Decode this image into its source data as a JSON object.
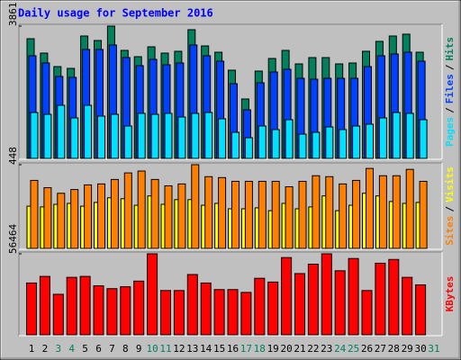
{
  "title": "Daily usage for September 2016",
  "legend_separator": "/",
  "categories": [
    "1",
    "2",
    "3",
    "4",
    "5",
    "6",
    "7",
    "8",
    "9",
    "10",
    "11",
    "12",
    "13",
    "14",
    "15",
    "16",
    "17",
    "18",
    "19",
    "20",
    "21",
    "22",
    "23",
    "24",
    "25",
    "26",
    "27",
    "28",
    "29",
    "30",
    "31"
  ],
  "category_colors": [
    "#000000",
    "#000000",
    "#00805c",
    "#00805c",
    "#000000",
    "#000000",
    "#000000",
    "#000000",
    "#000000",
    "#00805c",
    "#00805c",
    "#000000",
    "#000000",
    "#000000",
    "#000000",
    "#000000",
    "#00805c",
    "#00805c",
    "#000000",
    "#000000",
    "#000000",
    "#000000",
    "#000000",
    "#00805c",
    "#00805c",
    "#000000",
    "#000000",
    "#000000",
    "#000000",
    "#000000",
    "#00805c"
  ],
  "chart_data": [
    {
      "type": "bar",
      "ylim": [
        0,
        3861
      ],
      "yticks": [
        3861
      ],
      "series": [
        {
          "name": "Hits",
          "color": "#00805c",
          "values": [
            3493,
            3073,
            2679,
            2627,
            3572,
            3441,
            3861,
            3152,
            2968,
            3257,
            3073,
            3126,
            3756,
            3283,
            3099,
            2574,
            1734,
            2548,
            2916,
            3152,
            2758,
            2942,
            2942,
            2758,
            2784,
            3126,
            3415,
            3572,
            3625,
            3099,
            null
          ]
        },
        {
          "name": "Files",
          "color": "#0040ff",
          "values": [
            2995,
            2785,
            2391,
            2364,
            3179,
            3179,
            3310,
            2942,
            2706,
            2890,
            2732,
            2785,
            3310,
            2995,
            2837,
            2180,
            1419,
            2207,
            2522,
            2601,
            2338,
            2312,
            2338,
            2338,
            2338,
            2680,
            2995,
            3047,
            3100,
            2837,
            null
          ]
        },
        {
          "name": "Pages",
          "color": "#00e0ff",
          "values": [
            1340,
            1287,
            1550,
            1182,
            1550,
            1235,
            1287,
            946,
            1314,
            1287,
            1314,
            1208,
            1314,
            1340,
            1156,
            762,
            604,
            946,
            841,
            1130,
            709,
            762,
            919,
            841,
            946,
            998,
            1182,
            1340,
            1314,
            1130,
            null
          ]
        }
      ]
    },
    {
      "type": "bar",
      "ylim": [
        0,
        448
      ],
      "yticks": [
        448
      ],
      "series": [
        {
          "name": "Visits",
          "color": "#ffff00",
          "values": [
            226,
            222,
            236,
            241,
            226,
            246,
            271,
            266,
            231,
            281,
            236,
            261,
            261,
            231,
            241,
            212,
            212,
            217,
            202,
            241,
            212,
            222,
            281,
            202,
            231,
            295,
            281,
            251,
            241,
            246,
            null
          ]
        },
        {
          "name": "Sites",
          "color": "#ff8000",
          "values": [
            364,
            325,
            295,
            315,
            340,
            345,
            369,
            404,
            414,
            369,
            335,
            345,
            448,
            384,
            379,
            359,
            359,
            359,
            359,
            330,
            359,
            389,
            384,
            345,
            364,
            428,
            389,
            389,
            423,
            359,
            null
          ]
        }
      ]
    },
    {
      "type": "bar",
      "ylim": [
        0,
        56464
      ],
      "yticks": [
        56464
      ],
      "series": [
        {
          "name": "KBytes",
          "color": "#ff0000",
          "values": [
            36113,
            40709,
            28234,
            40053,
            40709,
            34143,
            32173,
            33487,
            37426,
            56464,
            30860,
            30860,
            42022,
            36113,
            31517,
            31517,
            29547,
            39396,
            36770,
            53841,
            42679,
            49245,
            56464,
            44649,
            53185,
            30860,
            49902,
            52528,
            40053,
            34800,
            null
          ]
        }
      ]
    }
  ]
}
